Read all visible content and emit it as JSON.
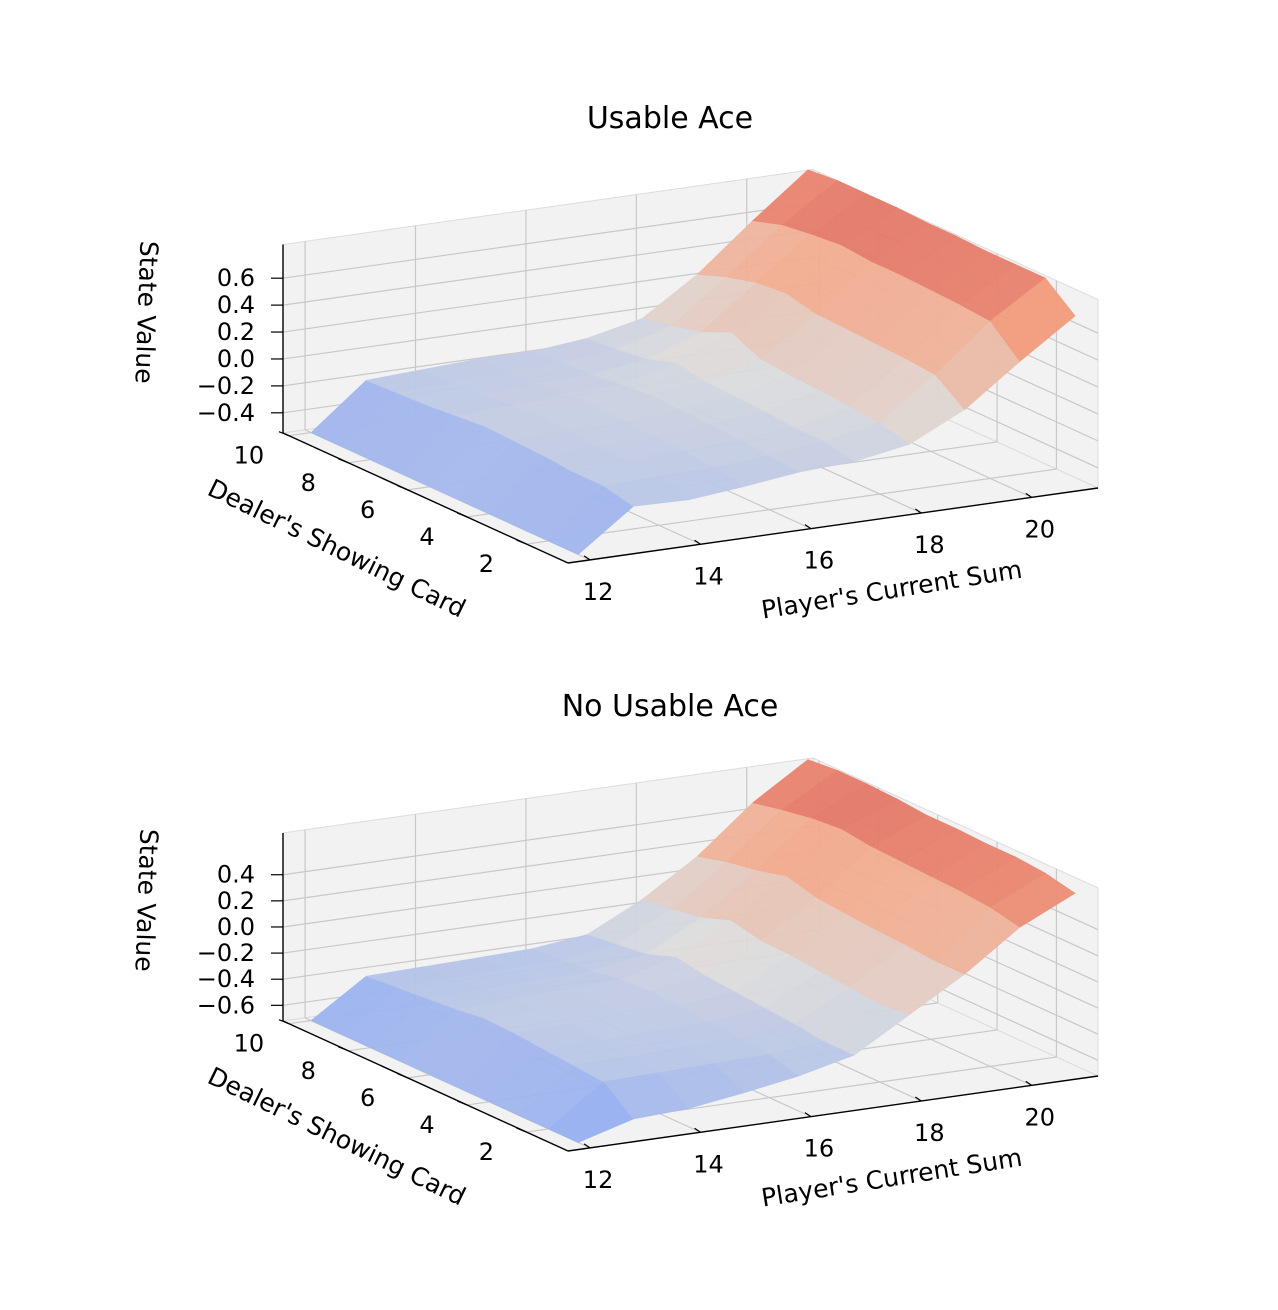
{
  "chart_data": [
    {
      "type": "surface3d",
      "title": "Usable Ace",
      "xlabel": "Player's Current Sum",
      "ylabel": "Dealer's Showing Card",
      "zlabel": "State Value",
      "x": [
        12,
        13,
        14,
        15,
        16,
        17,
        18,
        19,
        20,
        21
      ],
      "y": [
        1,
        2,
        3,
        4,
        5,
        6,
        7,
        8,
        9,
        10
      ],
      "x_ticks": [
        "12",
        "14",
        "16",
        "18",
        "20"
      ],
      "y_ticks": [
        "2",
        "4",
        "6",
        "8",
        "10"
      ],
      "z_ticks": [
        "−0.4",
        "−0.2",
        "0.0",
        "0.2",
        "0.4",
        "0.6"
      ],
      "z_tick_values": [
        -0.4,
        -0.2,
        0.0,
        0.2,
        0.4,
        0.6
      ],
      "zlim": [
        -0.55,
        0.75
      ],
      "colormap": "coolwarm",
      "z": [
        [
          -0.55,
          -0.25,
          -0.26,
          -0.22,
          -0.17,
          -0.15,
          -0.08,
          0.12,
          0.42,
          0.7
        ],
        [
          -0.55,
          -0.2,
          -0.19,
          -0.18,
          -0.15,
          -0.1,
          -0.02,
          0.28,
          0.62,
          0.88
        ],
        [
          -0.55,
          -0.2,
          -0.18,
          -0.16,
          -0.13,
          -0.1,
          0.0,
          0.3,
          0.64,
          0.88
        ],
        [
          -0.55,
          -0.18,
          -0.17,
          -0.15,
          -0.12,
          -0.08,
          0.02,
          0.31,
          0.65,
          0.88
        ],
        [
          -0.55,
          -0.17,
          -0.16,
          -0.14,
          -0.11,
          -0.07,
          0.03,
          0.32,
          0.66,
          0.89
        ],
        [
          -0.55,
          -0.16,
          -0.15,
          -0.13,
          -0.1,
          -0.06,
          0.05,
          0.33,
          0.66,
          0.89
        ],
        [
          -0.55,
          -0.18,
          -0.16,
          -0.13,
          -0.12,
          -0.02,
          0.15,
          0.38,
          0.68,
          0.9
        ],
        [
          -0.55,
          -0.2,
          -0.18,
          -0.16,
          -0.15,
          -0.09,
          0.05,
          0.36,
          0.66,
          0.9
        ],
        [
          -0.55,
          -0.21,
          -0.19,
          -0.17,
          -0.16,
          -0.12,
          0.0,
          0.3,
          0.63,
          0.9
        ],
        [
          -0.55,
          -0.22,
          -0.2,
          -0.18,
          -0.18,
          -0.14,
          -0.05,
          0.22,
          0.56,
          0.88
        ]
      ]
    },
    {
      "type": "surface3d",
      "title": "No Usable Ace",
      "xlabel": "Player's Current Sum",
      "ylabel": "Dealer's Showing Card",
      "zlabel": "State Value",
      "x": [
        12,
        13,
        14,
        15,
        16,
        17,
        18,
        19,
        20,
        21
      ],
      "y": [
        1,
        2,
        3,
        4,
        5,
        6,
        7,
        8,
        9,
        10
      ],
      "x_ticks": [
        "12",
        "14",
        "16",
        "18",
        "20"
      ],
      "y_ticks": [
        "2",
        "4",
        "6",
        "8",
        "10"
      ],
      "z_ticks": [
        "−0.6",
        "−0.4",
        "−0.2",
        "0.0",
        "0.2",
        "0.4"
      ],
      "z_tick_values": [
        -0.6,
        -0.4,
        -0.2,
        0.0,
        0.2,
        0.4
      ],
      "zlim": [
        -0.72,
        0.62
      ],
      "colormap": "coolwarm",
      "z": [
        [
          -0.72,
          -0.6,
          -0.58,
          -0.52,
          -0.45,
          -0.35,
          -0.1,
          0.15,
          0.45,
          0.65
        ],
        [
          -0.72,
          -0.42,
          -0.41,
          -0.4,
          -0.39,
          -0.35,
          -0.12,
          0.15,
          0.5,
          0.7
        ],
        [
          -0.72,
          -0.4,
          -0.39,
          -0.38,
          -0.37,
          -0.32,
          -0.1,
          0.17,
          0.52,
          0.72
        ],
        [
          -0.72,
          -0.38,
          -0.37,
          -0.36,
          -0.35,
          -0.3,
          -0.08,
          0.18,
          0.53,
          0.72
        ],
        [
          -0.72,
          -0.36,
          -0.35,
          -0.34,
          -0.33,
          -0.28,
          -0.06,
          0.2,
          0.54,
          0.73
        ],
        [
          -0.72,
          -0.35,
          -0.34,
          -0.33,
          -0.32,
          -0.26,
          -0.05,
          0.22,
          0.55,
          0.73
        ],
        [
          -0.72,
          -0.38,
          -0.36,
          -0.35,
          -0.33,
          -0.22,
          0.0,
          0.28,
          0.58,
          0.75
        ],
        [
          -0.72,
          -0.4,
          -0.39,
          -0.38,
          -0.37,
          -0.3,
          -0.08,
          0.22,
          0.56,
          0.76
        ],
        [
          -0.72,
          -0.42,
          -0.41,
          -0.4,
          -0.39,
          -0.33,
          -0.12,
          0.18,
          0.52,
          0.76
        ],
        [
          -0.72,
          -0.44,
          -0.43,
          -0.42,
          -0.41,
          -0.36,
          -0.15,
          0.12,
          0.47,
          0.74
        ]
      ]
    }
  ]
}
